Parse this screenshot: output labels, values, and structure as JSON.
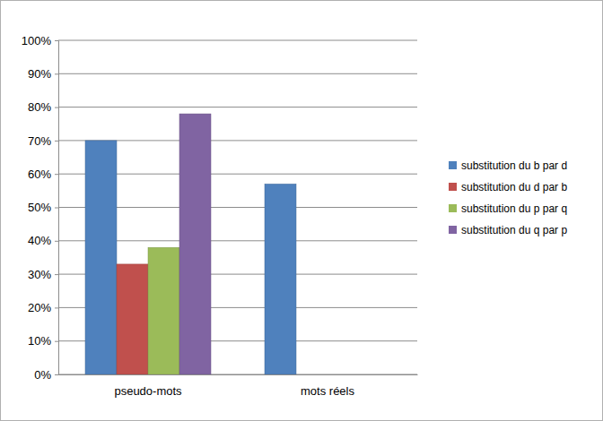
{
  "chart_data": {
    "type": "bar",
    "categories": [
      "pseudo-mots",
      "mots réels"
    ],
    "series": [
      {
        "name": "substitution du b par d",
        "color": "#4f81bd",
        "values": [
          70,
          57
        ]
      },
      {
        "name": "substitution du d par b",
        "color": "#c0504d",
        "values": [
          33,
          0
        ]
      },
      {
        "name": "substitution du p par q",
        "color": "#9bbb59",
        "values": [
          38,
          0
        ]
      },
      {
        "name": "substitution du q par p",
        "color": "#8064a2",
        "values": [
          78,
          0
        ]
      }
    ],
    "ylim": [
      0,
      100
    ],
    "yticks": [
      {
        "value": 0,
        "label": "0%"
      },
      {
        "value": 10,
        "label": "10%"
      },
      {
        "value": 20,
        "label": "20%"
      },
      {
        "value": 30,
        "label": "30%"
      },
      {
        "value": 40,
        "label": "40%"
      },
      {
        "value": 50,
        "label": "50%"
      },
      {
        "value": 60,
        "label": "60%"
      },
      {
        "value": 70,
        "label": "70%"
      },
      {
        "value": 80,
        "label": "80%"
      },
      {
        "value": 90,
        "label": "90%"
      },
      {
        "value": 100,
        "label": "100%"
      }
    ],
    "grid": true,
    "legend": "right"
  }
}
